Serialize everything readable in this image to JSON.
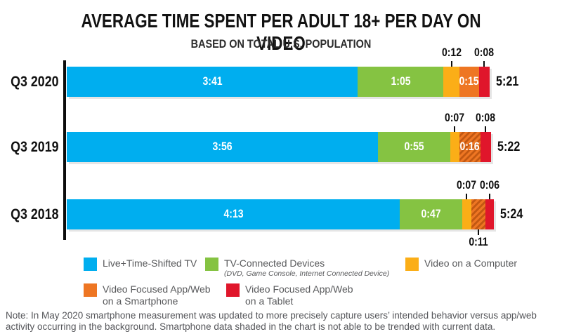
{
  "title": "AVERAGE TIME SPENT PER ADULT 18+ PER DAY ON VIDEO",
  "subtitle": "BASED ON TOTAL U.S. POPULATION",
  "note": "Note: In May 2020 smartphone measurement was updated to more precisely capture users’ intended behavior versus app/web activity occurring in the background. Smartphone data shaded in the chart is not able to be trended with current data.",
  "chart_data": {
    "type": "bar",
    "orientation": "horizontal-stacked",
    "unit": "hours:minutes per day",
    "x_axis_minutes_max": 340,
    "grid": false,
    "legend_position": "bottom",
    "colors": {
      "tv": "#00AEEF",
      "connected": "#85C342",
      "computer": "#FBAE17",
      "smartphone": "#EE7623",
      "tablet": "#E0162B"
    },
    "series_names": [
      "Live+Time-Shifted TV",
      "TV-Connected Devices",
      "Video on a Computer",
      "Video Focused App/Web on a Smartphone",
      "Video Focused App/Web on a Tablet"
    ],
    "rows": [
      {
        "label": "Q3 2020",
        "total": "5:21",
        "segments": [
          {
            "series": "Live+Time-Shifted TV",
            "value": "3:41",
            "minutes": 221,
            "color": "tv",
            "label_pos": "inside",
            "hatched": false
          },
          {
            "series": "TV-Connected Devices",
            "value": "1:05",
            "minutes": 65,
            "color": "connected",
            "label_pos": "inside",
            "hatched": false
          },
          {
            "series": "Video on a Computer",
            "value": "0:12",
            "minutes": 12,
            "color": "computer",
            "label_pos": "above",
            "hatched": false
          },
          {
            "series": "Video Focused App/Web on a Smartphone",
            "value": "0:15",
            "minutes": 15,
            "color": "smartphone",
            "label_pos": "inside",
            "hatched": false
          },
          {
            "series": "Video Focused App/Web on a Tablet",
            "value": "0:08",
            "minutes": 8,
            "color": "tablet",
            "label_pos": "above",
            "hatched": false
          }
        ]
      },
      {
        "label": "Q3 2019",
        "total": "5:22",
        "segments": [
          {
            "series": "Live+Time-Shifted TV",
            "value": "3:56",
            "minutes": 236,
            "color": "tv",
            "label_pos": "inside",
            "hatched": false
          },
          {
            "series": "TV-Connected Devices",
            "value": "0:55",
            "minutes": 55,
            "color": "connected",
            "label_pos": "inside",
            "hatched": false
          },
          {
            "series": "Video on a Computer",
            "value": "0:07",
            "minutes": 7,
            "color": "computer",
            "label_pos": "above",
            "hatched": false
          },
          {
            "series": "Video Focused App/Web on a Smartphone",
            "value": "0:16",
            "minutes": 16,
            "color": "smartphone",
            "label_pos": "inside",
            "hatched": true
          },
          {
            "series": "Video Focused App/Web on a Tablet",
            "value": "0:08",
            "minutes": 8,
            "color": "tablet",
            "label_pos": "above",
            "hatched": false
          }
        ]
      },
      {
        "label": "Q3 2018",
        "total": "5:24",
        "segments": [
          {
            "series": "Live+Time-Shifted TV",
            "value": "4:13",
            "minutes": 253,
            "color": "tv",
            "label_pos": "inside",
            "hatched": false
          },
          {
            "series": "TV-Connected Devices",
            "value": "0:47",
            "minutes": 47,
            "color": "connected",
            "label_pos": "inside",
            "hatched": false
          },
          {
            "series": "Video on a Computer",
            "value": "0:07",
            "minutes": 7,
            "color": "computer",
            "label_pos": "above",
            "hatched": false
          },
          {
            "series": "Video Focused App/Web on a Smartphone",
            "value": "0:11",
            "minutes": 11,
            "color": "smartphone",
            "label_pos": "below",
            "hatched": true
          },
          {
            "series": "Video Focused App/Web on a Tablet",
            "value": "0:06",
            "minutes": 6,
            "color": "tablet",
            "label_pos": "above",
            "hatched": false
          }
        ]
      }
    ],
    "legend": [
      {
        "label": "Live+Time-Shifted TV",
        "label2": "",
        "sublabel": "",
        "color": "tv"
      },
      {
        "label": "TV-Connected Devices",
        "label2": "",
        "sublabel": "(DVD, Game Console, Internet Connected Device)",
        "color": "connected"
      },
      {
        "label": "Video on a Computer",
        "label2": "",
        "sublabel": "",
        "color": "computer"
      },
      {
        "label": "Video Focused App/Web",
        "label2": "on a Smartphone",
        "sublabel": "",
        "color": "smartphone"
      },
      {
        "label": "Video Focused App/Web",
        "label2": "on a Tablet",
        "sublabel": "",
        "color": "tablet"
      }
    ]
  }
}
